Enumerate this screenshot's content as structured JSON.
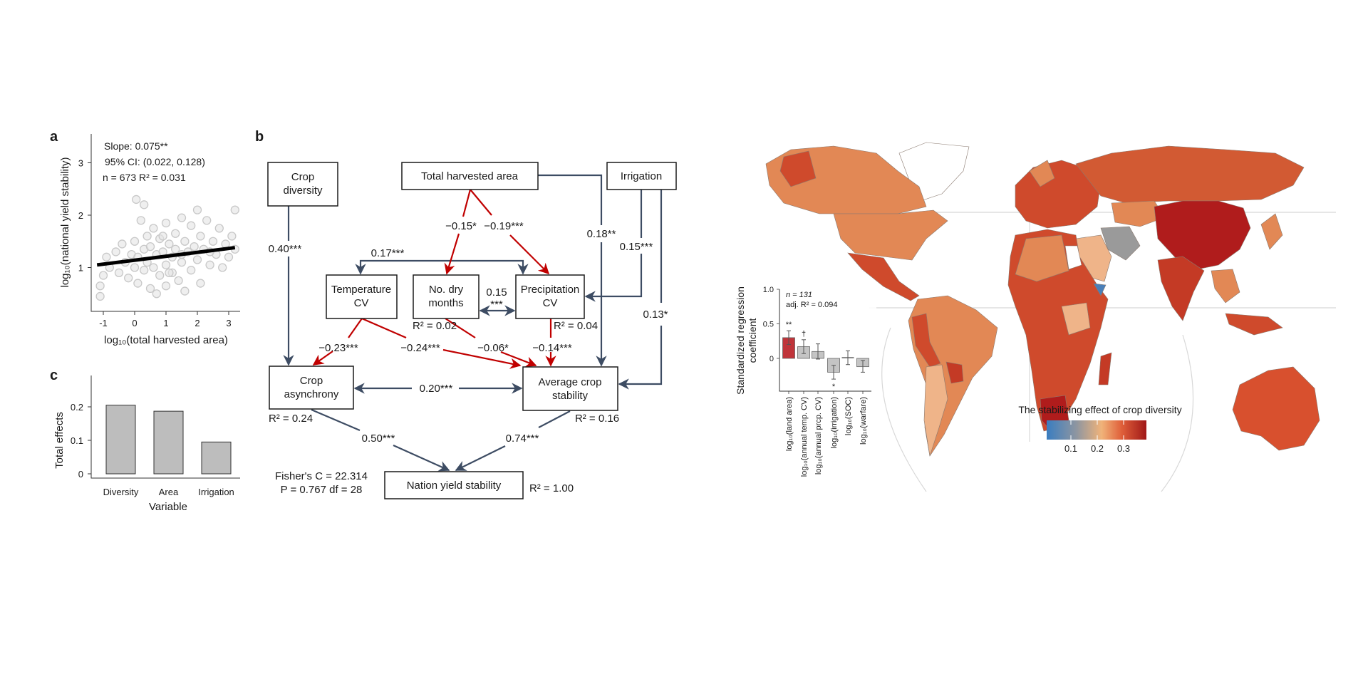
{
  "panel_letters": {
    "a": "a",
    "b": "b",
    "c": "c"
  },
  "chart_data": [
    {
      "id": "panel-a",
      "type": "scatter",
      "xlabel": "log₁₀(total harvested area)",
      "ylabel": "log₁₀(national yield stability)",
      "xlim": [
        -1.4,
        3.4
      ],
      "ylim": [
        0.15,
        3.5
      ],
      "xticks": [
        "-1",
        "0",
        "1",
        "2",
        "3"
      ],
      "yticks": [
        "1",
        "2",
        "3"
      ],
      "annotation": [
        "Slope: 0.075**",
        "95% CI: (0.022, 0.128)",
        "n = 673 R² = 0.031"
      ],
      "regression": {
        "slope": 0.075,
        "x": [
          -1.2,
          3.2
        ],
        "y": [
          1.05,
          1.38
        ]
      },
      "point_color": "#c8c8c8",
      "points": [
        [
          -1.1,
          0.65
        ],
        [
          -1.0,
          0.85
        ],
        [
          -0.9,
          1.2
        ],
        [
          -0.8,
          1.0
        ],
        [
          -0.6,
          1.3
        ],
        [
          -0.5,
          0.9
        ],
        [
          -0.4,
          1.45
        ],
        [
          -0.3,
          1.1
        ],
        [
          -0.2,
          0.8
        ],
        [
          -0.1,
          1.25
        ],
        [
          0,
          1.0
        ],
        [
          0,
          1.5
        ],
        [
          0.1,
          0.7
        ],
        [
          0.1,
          1.2
        ],
        [
          0.2,
          1.9
        ],
        [
          0.3,
          1.35
        ],
        [
          0.3,
          0.95
        ],
        [
          0.4,
          1.6
        ],
        [
          0.4,
          1.1
        ],
        [
          0.5,
          0.6
        ],
        [
          0.5,
          1.4
        ],
        [
          0.6,
          1.75
        ],
        [
          0.6,
          1.0
        ],
        [
          0.7,
          1.25
        ],
        [
          0.7,
          0.5
        ],
        [
          0.8,
          1.55
        ],
        [
          0.8,
          0.85
        ],
        [
          0.9,
          1.3
        ],
        [
          1.0,
          1.85
        ],
        [
          1.0,
          1.05
        ],
        [
          1.0,
          0.65
        ],
        [
          1.1,
          1.45
        ],
        [
          1.2,
          1.2
        ],
        [
          1.2,
          0.9
        ],
        [
          1.3,
          1.65
        ],
        [
          1.3,
          1.35
        ],
        [
          1.4,
          0.75
        ],
        [
          1.5,
          1.95
        ],
        [
          1.5,
          1.1
        ],
        [
          1.6,
          1.5
        ],
        [
          1.6,
          0.55
        ],
        [
          1.7,
          1.3
        ],
        [
          1.8,
          1.8
        ],
        [
          1.8,
          0.95
        ],
        [
          1.9,
          1.4
        ],
        [
          2.0,
          2.1
        ],
        [
          2.0,
          1.15
        ],
        [
          2.1,
          1.6
        ],
        [
          2.1,
          0.7
        ],
        [
          2.2,
          1.35
        ],
        [
          2.3,
          1.9
        ],
        [
          2.4,
          1.05
        ],
        [
          2.5,
          1.5
        ],
        [
          2.6,
          1.25
        ],
        [
          2.7,
          1.75
        ],
        [
          2.8,
          1.0
        ],
        [
          2.9,
          1.45
        ],
        [
          3.0,
          1.2
        ],
        [
          3.1,
          1.6
        ],
        [
          3.2,
          2.1
        ],
        [
          3.2,
          1.35
        ],
        [
          0.05,
          2.3
        ],
        [
          0.3,
          2.2
        ],
        [
          -1.1,
          0.45
        ],
        [
          1.5,
          1.25
        ],
        [
          0.9,
          1.6
        ],
        [
          2.4,
          1.3
        ],
        [
          1.1,
          0.9
        ]
      ]
    },
    {
      "id": "panel-c",
      "type": "bar",
      "categories": [
        "Diversity",
        "Area",
        "Irrigation"
      ],
      "values": [
        0.205,
        0.187,
        0.095
      ],
      "xlabel": "Variable",
      "ylabel": "Total effects",
      "ylim": [
        0,
        0.27
      ],
      "yticks": [
        "0",
        "0.1",
        "0.2"
      ],
      "bar_color": "#bdbdbd"
    },
    {
      "id": "map-inset",
      "type": "bar",
      "categories": [
        "log₁₀(land area)",
        "log₁₀(annual temp. CV)",
        "log₁₀(annual prcp. CV)",
        "log₁₀(irrigation)",
        "log₁₀(SOC)",
        "log₁₀(warfare)"
      ],
      "values": [
        0.3,
        0.17,
        0.1,
        -0.2,
        0.01,
        -0.12
      ],
      "error_low": [
        0.2,
        0.07,
        -0.01,
        -0.3,
        -0.09,
        -0.2
      ],
      "error_high": [
        0.4,
        0.27,
        0.21,
        -0.1,
        0.11,
        -0.03
      ],
      "significance": [
        "**",
        "†",
        "",
        "*",
        "",
        ""
      ],
      "bar_colors": [
        "#c0343a",
        "#c4c4c4",
        "#c4c4c4",
        "#c4c4c4",
        "#c4c4c4",
        "#c4c4c4"
      ],
      "ylabel": "Standardized regression coefficient",
      "ylabel_lines": [
        "Standardized regression",
        "coefficient"
      ],
      "ylim": [
        -0.47,
        1.05
      ],
      "yticks": [
        "0",
        "0.5",
        "1.0"
      ],
      "annotation": [
        "n = 131",
        "adj. R² = 0.094"
      ]
    }
  ],
  "diagram": {
    "nodes": {
      "crop_diversity": [
        "Crop",
        "diversity"
      ],
      "total_harvested_area": [
        "Total harvested area"
      ],
      "irrigation": [
        "Irrigation"
      ],
      "temperature_cv": [
        "Temperature",
        "CV"
      ],
      "dry_months": [
        "No. dry",
        "months"
      ],
      "precipitation_cv": [
        "Precipitation",
        "CV"
      ],
      "crop_asynchrony": [
        "Crop",
        "asynchrony"
      ],
      "average_crop_stability": [
        "Average crop",
        "stability"
      ],
      "nation_yield_stability": [
        "Nation yield stability"
      ]
    },
    "r2": {
      "dry_months": "R² = 0.02",
      "precipitation_cv": "R² = 0.04",
      "crop_asynchrony": "R² = 0.24",
      "average_crop_stability": "R² = 0.16",
      "nation_yield_stability": "R² = 1.00"
    },
    "edges": {
      "diversity_asynchrony": "0.40***",
      "temp_precip": "0.17***",
      "area_drymonths": "−0.15*",
      "area_precip": "−0.19***",
      "area_stability": "0.18**",
      "irrigation_precip": "0.15***",
      "irrigation_stability": "0.13*",
      "drymonths_precip_value": "0.15",
      "drymonths_precip_sig": "***",
      "temp_asynchrony": "−0.23***",
      "temp_stability": "−0.24***",
      "drymonths_stability": "−0.06*",
      "precip_stability": "−0.14***",
      "asynchrony_stability": "0.20***",
      "asynchrony_nation": "0.50***",
      "stability_nation": "0.74***"
    },
    "fit": [
      "Fisher's C = 22.314",
      "P = 0.767 df = 28"
    ],
    "colors": {
      "positive": "#3d4c63",
      "negative": "#c00000"
    }
  },
  "map": {
    "colorbar_title": "The stabilizing effect of crop diversity",
    "colorbar_ticks": [
      "0.1",
      "0.2",
      "0.3"
    ],
    "colorbar_stops": [
      "#3a7dc0",
      "#8f96a0",
      "#f0b37a",
      "#e0603a",
      "#a01818"
    ],
    "country_colors": {
      "high": "#b01c1c",
      "mid_high": "#cf4a2c",
      "mid": "#e28855",
      "low": "#efb489",
      "gray": "#9a9a9a",
      "blue": "#4a7fb8",
      "no_data": "#ffffff"
    }
  }
}
